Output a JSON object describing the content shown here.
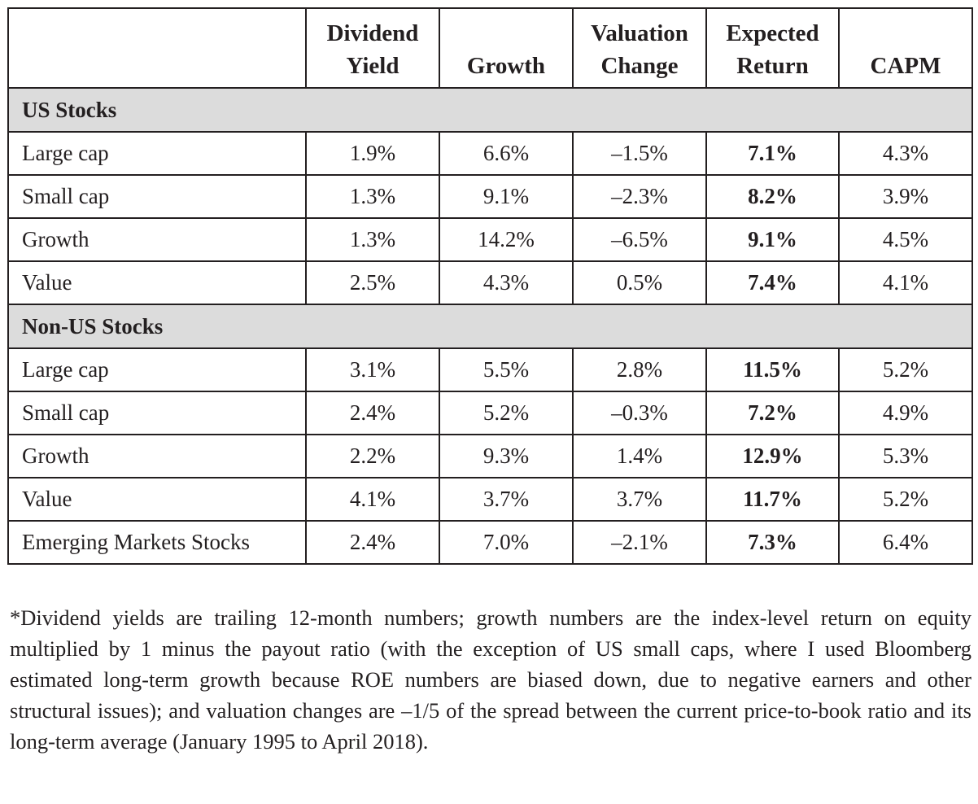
{
  "headers": [
    {
      "line1": "",
      "line2": ""
    },
    {
      "line1": "Dividend",
      "line2": "Yield"
    },
    {
      "line1": "",
      "line2": "Growth"
    },
    {
      "line1": "Valuation",
      "line2": "Change"
    },
    {
      "line1": "Expected",
      "line2": "Return"
    },
    {
      "line1": "",
      "line2": "CAPM"
    }
  ],
  "sections": [
    {
      "title": "US Stocks",
      "rows": [
        {
          "label": "Large cap",
          "dividend_yield": "1.9%",
          "growth": "6.6%",
          "valuation_change": "–1.5%",
          "expected_return": "7.1%",
          "capm": "4.3%"
        },
        {
          "label": "Small cap",
          "dividend_yield": "1.3%",
          "growth": "9.1%",
          "valuation_change": "–2.3%",
          "expected_return": "8.2%",
          "capm": "3.9%"
        },
        {
          "label": "Growth",
          "dividend_yield": "1.3%",
          "growth": "14.2%",
          "valuation_change": "–6.5%",
          "expected_return": "9.1%",
          "capm": "4.5%"
        },
        {
          "label": "Value",
          "dividend_yield": "2.5%",
          "growth": "4.3%",
          "valuation_change": "0.5%",
          "expected_return": "7.4%",
          "capm": "4.1%"
        }
      ]
    },
    {
      "title": "Non-US Stocks",
      "rows": [
        {
          "label": "Large cap",
          "dividend_yield": "3.1%",
          "growth": "5.5%",
          "valuation_change": "2.8%",
          "expected_return": "11.5%",
          "capm": "5.2%"
        },
        {
          "label": "Small cap",
          "dividend_yield": "2.4%",
          "growth": "5.2%",
          "valuation_change": "–0.3%",
          "expected_return": "7.2%",
          "capm": "4.9%"
        },
        {
          "label": "Growth",
          "dividend_yield": "2.2%",
          "growth": "9.3%",
          "valuation_change": "1.4%",
          "expected_return": "12.9%",
          "capm": "5.3%"
        },
        {
          "label": "Value",
          "dividend_yield": "4.1%",
          "growth": "3.7%",
          "valuation_change": "3.7%",
          "expected_return": "11.7%",
          "capm": "5.2%"
        },
        {
          "label": "Emerging Markets Stocks",
          "dividend_yield": "2.4%",
          "growth": "7.0%",
          "valuation_change": "–2.1%",
          "expected_return": "7.3%",
          "capm": "6.4%"
        }
      ]
    }
  ],
  "footnote": "*Dividend yields are trailing 12-month numbers; growth numbers are the index-level return on equity multiplied by 1 minus the payout ratio (with the exception of US small caps, where I used Bloomberg estimated long-term growth because ROE numbers are biased down, due to negative earners and other structural issues); and valuation changes are –1/5 of the spread between the current price-to-book ratio and its long-term average (January 1995 to April 2018)."
}
